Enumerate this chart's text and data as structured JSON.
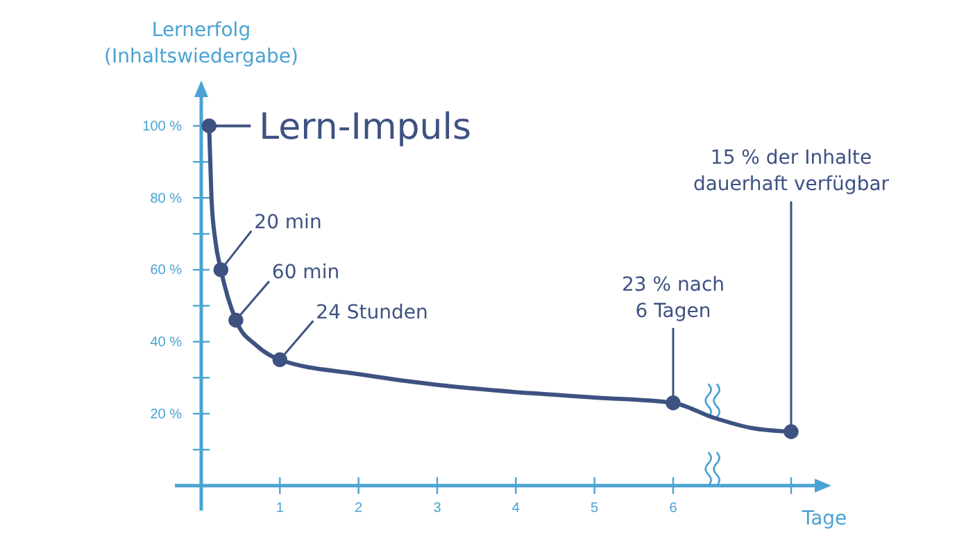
{
  "chart_data": {
    "type": "line",
    "xlabel": "Tage",
    "ylabel": "Lernerfolg\n(Inhaltswiedergabe)",
    "xlim": [
      0,
      7.8
    ],
    "ylim": [
      0,
      108
    ],
    "xticks": [
      1,
      2,
      3,
      4,
      5,
      6,
      {
        "value": 7.5,
        "label": null
      }
    ],
    "yticks": [
      {
        "value": 10,
        "label": null
      },
      {
        "value": 20,
        "label": "20 %"
      },
      {
        "value": 30,
        "label": null
      },
      {
        "value": 40,
        "label": "40 %"
      },
      {
        "value": 50,
        "label": null
      },
      {
        "value": 60,
        "label": "60 %"
      },
      {
        "value": 70,
        "label": null
      },
      {
        "value": 80,
        "label": "80 %"
      },
      {
        "value": 90,
        "label": null
      },
      {
        "value": 100,
        "label": "100 %"
      }
    ],
    "grid": false,
    "series": [
      {
        "marker": "none",
        "color": "#3e5282",
        "x": [
          0.1,
          0.13,
          0.18,
          0.25,
          0.44,
          0.7,
          1,
          2,
          3,
          4,
          5,
          6,
          6.5,
          7,
          7.5
        ],
        "values": [
          100,
          80,
          68,
          60,
          46,
          39,
          35,
          31,
          28,
          26,
          24.5,
          23,
          19,
          16,
          15
        ]
      },
      {
        "type": "scatter",
        "marker": "circle",
        "color": "#3e5282",
        "x": [
          0.1,
          0.25,
          0.44,
          1,
          6,
          7.5
        ],
        "values": [
          100,
          60,
          46,
          35,
          23,
          15
        ]
      }
    ],
    "annotations": [
      {
        "text": "Lern-Impuls",
        "x": 0.1,
        "y": 100
      },
      {
        "text": "20 min",
        "x": 0.25,
        "y": 60
      },
      {
        "text": "60 min",
        "x": 0.44,
        "y": 46
      },
      {
        "text": "24 Stunden",
        "x": 1,
        "y": 35
      },
      {
        "text": "23 % nach\n6 Tagen",
        "x": 6,
        "y": 23
      },
      {
        "text": "15 % der Inhalte\ndauerhaft verfügbar",
        "x": 7.5,
        "y": 15
      }
    ]
  }
}
